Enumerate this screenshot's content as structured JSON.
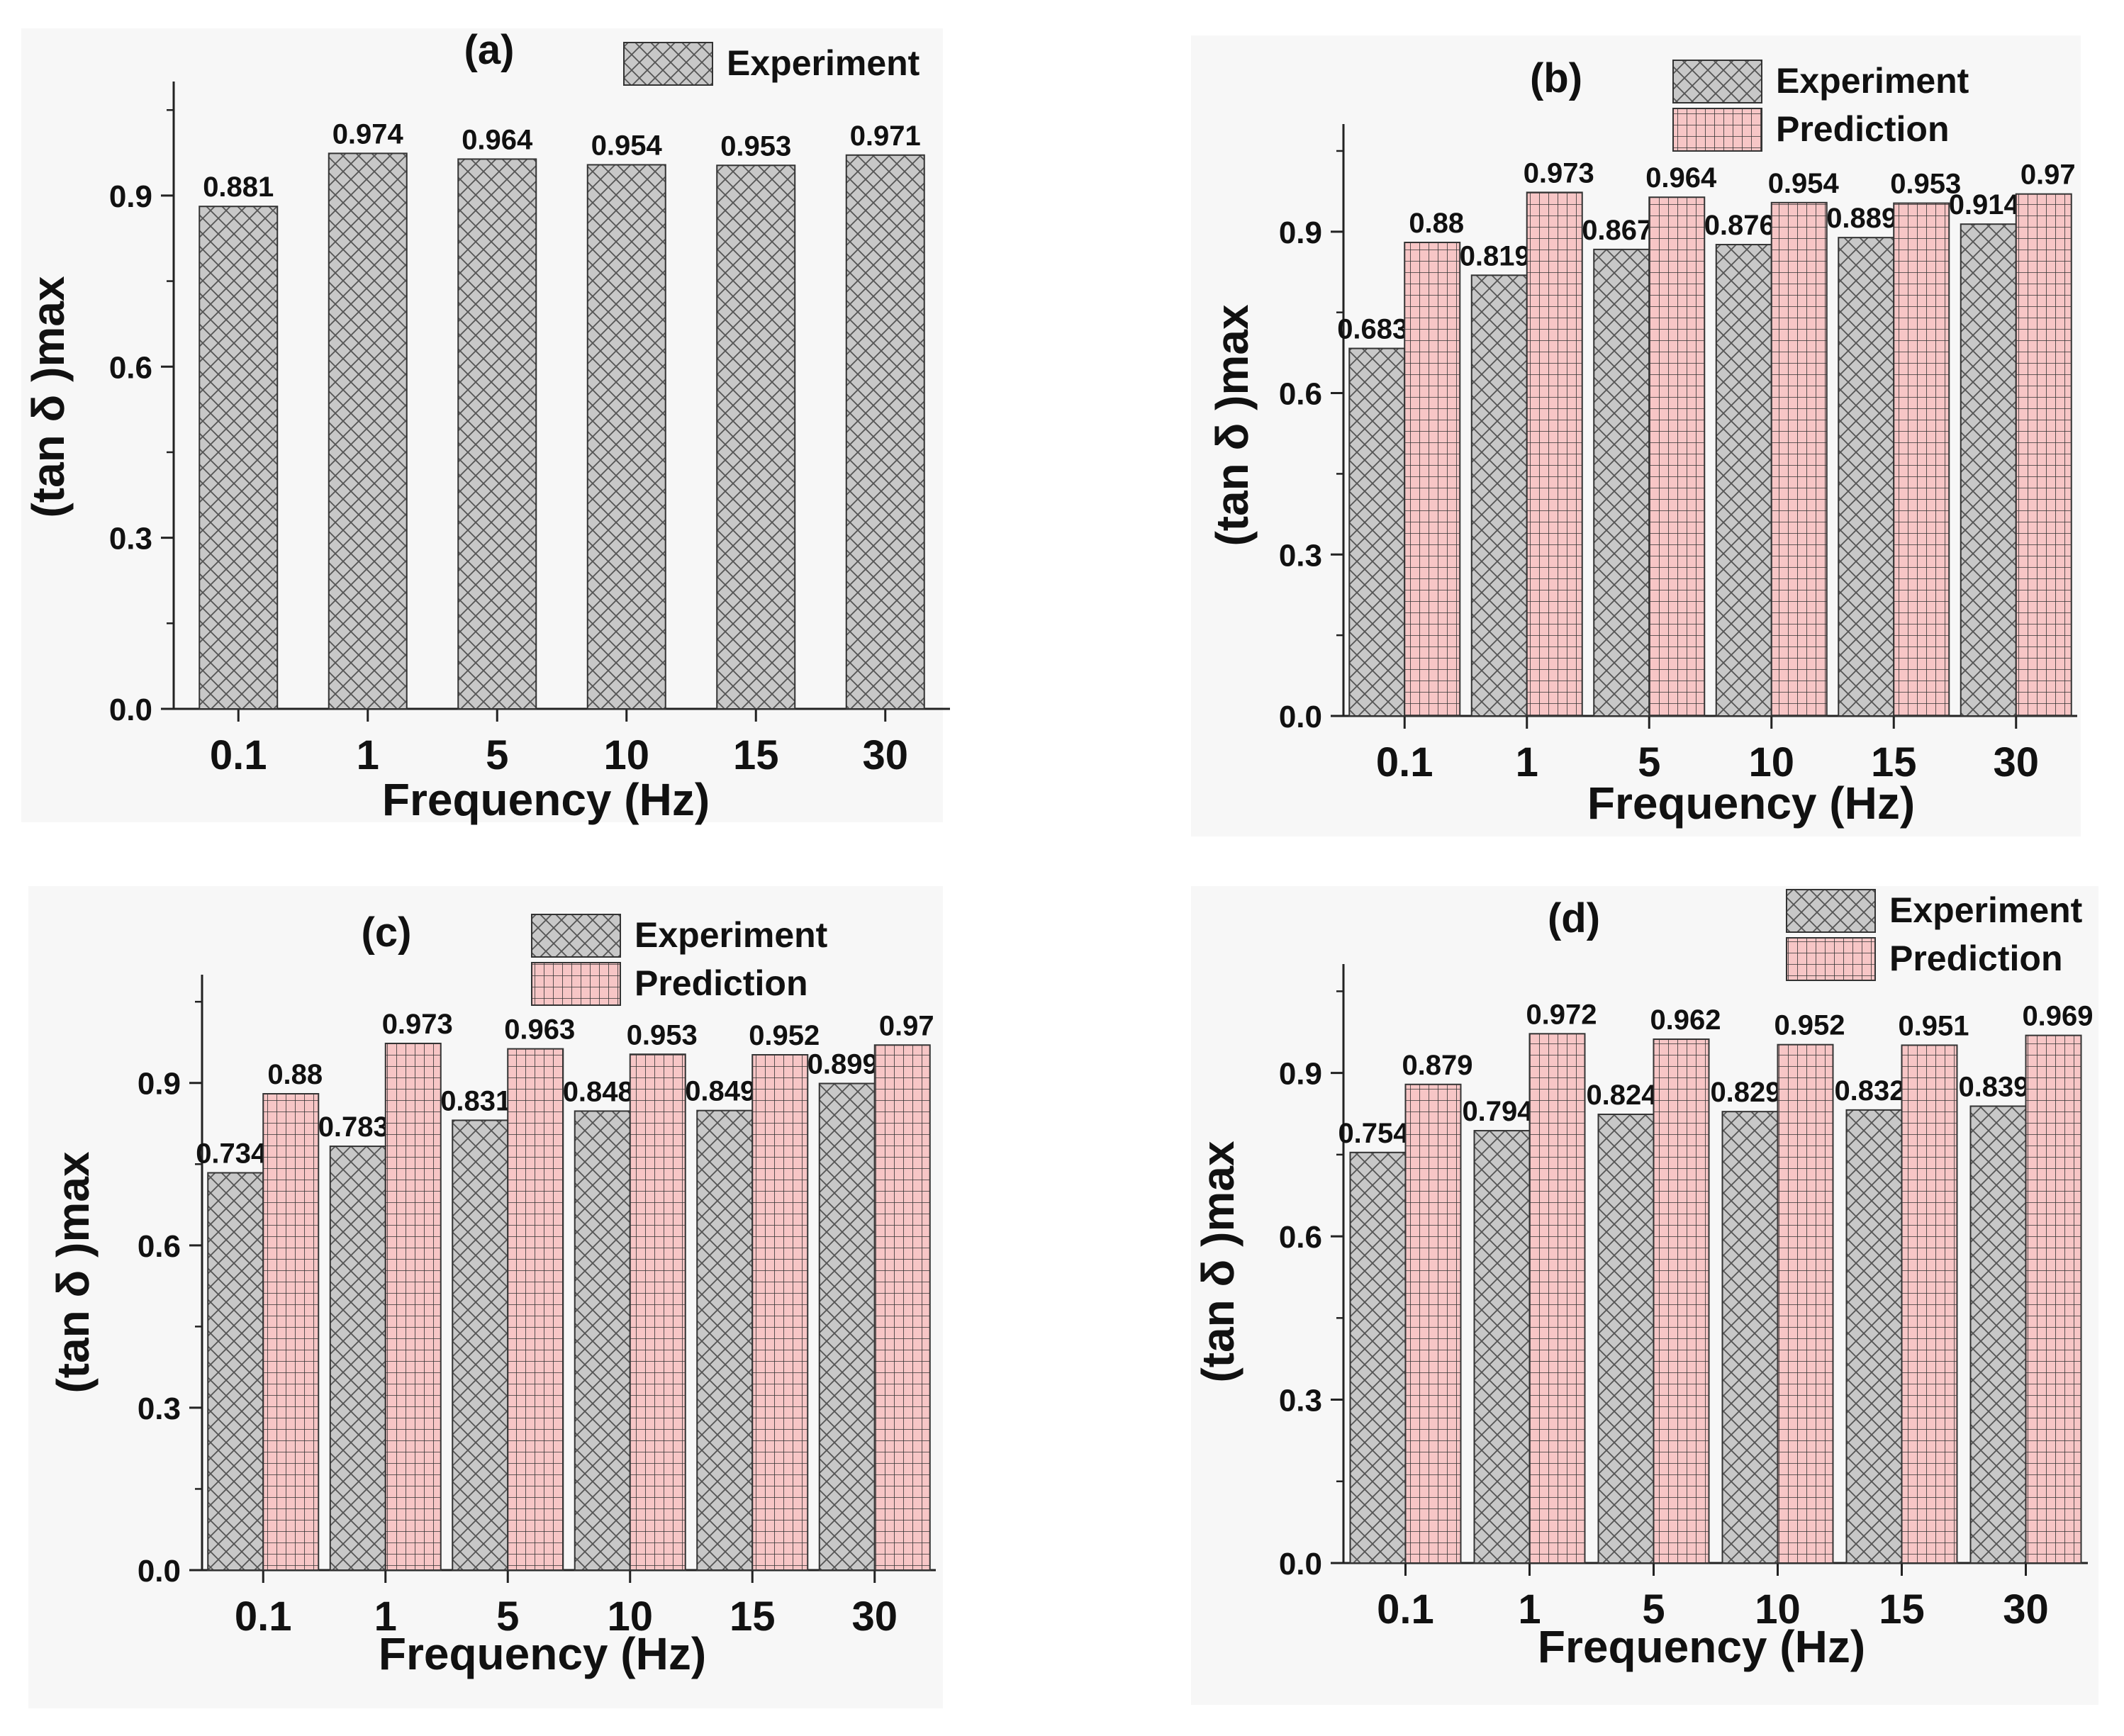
{
  "figure": {
    "panels": [
      {
        "label": "(a)",
        "legend": [
          "Experiment"
        ]
      },
      {
        "label": "(b)",
        "legend": [
          "Experiment",
          "Prediction"
        ]
      },
      {
        "label": "(c)",
        "legend": [
          "Experiment",
          "Prediction"
        ]
      },
      {
        "label": "(d)",
        "legend": [
          "Experiment",
          "Prediction"
        ]
      }
    ],
    "colors": {
      "experiment_fill": "#c8c8c8",
      "experiment_hatch": "#555555",
      "prediction_fill": "#f7c6c6",
      "prediction_hatch": "#333333",
      "panel_bg": "#f7f7f7"
    }
  },
  "chart_data": [
    {
      "type": "bar",
      "title": "(a)",
      "xlabel": "Frequency (Hz)",
      "ylabel": "(tan δ )max",
      "categories": [
        "0.1",
        "1",
        "5",
        "10",
        "15",
        "30"
      ],
      "yticks": [
        "0.0",
        "0.3",
        "0.6",
        "0.9"
      ],
      "ylim": [
        0,
        1.1
      ],
      "legend_position": "top-right",
      "series": [
        {
          "name": "Experiment",
          "values": [
            0.881,
            0.974,
            0.964,
            0.954,
            0.953,
            0.971
          ],
          "labels": [
            "0.881",
            "0.974",
            "0.964",
            "0.954",
            "0.953",
            "0.971"
          ]
        }
      ]
    },
    {
      "type": "bar",
      "title": "(b)",
      "xlabel": "Frequency (Hz)",
      "ylabel": "(tan δ )max",
      "categories": [
        "0.1",
        "1",
        "5",
        "10",
        "15",
        "30"
      ],
      "yticks": [
        "0.0",
        "0.3",
        "0.6",
        "0.9"
      ],
      "ylim": [
        0,
        1.1
      ],
      "legend_position": "top-right",
      "series": [
        {
          "name": "Experiment",
          "values": [
            0.683,
            0.819,
            0.867,
            0.876,
            0.889,
            0.914
          ],
          "labels": [
            "0.683",
            "0.819",
            "0.867",
            "0.876",
            "0.889",
            "0.914"
          ]
        },
        {
          "name": "Prediction",
          "values": [
            0.88,
            0.973,
            0.964,
            0.954,
            0.953,
            0.97
          ],
          "labels": [
            "0.88",
            "0.973",
            "0.964",
            "0.954",
            "0.953",
            "0.97"
          ]
        }
      ]
    },
    {
      "type": "bar",
      "title": "(c)",
      "xlabel": "Frequency (Hz)",
      "ylabel": "(tan δ )max",
      "categories": [
        "0.1",
        "1",
        "5",
        "10",
        "15",
        "30"
      ],
      "yticks": [
        "0.0",
        "0.3",
        "0.6",
        "0.9"
      ],
      "ylim": [
        0,
        1.1
      ],
      "legend_position": "top-right",
      "series": [
        {
          "name": "Experiment",
          "values": [
            0.734,
            0.783,
            0.831,
            0.848,
            0.849,
            0.899
          ],
          "labels": [
            "0.734",
            "0.783",
            "0.831",
            "0.848",
            "0.849",
            "0.899"
          ]
        },
        {
          "name": "Prediction",
          "values": [
            0.88,
            0.973,
            0.963,
            0.953,
            0.952,
            0.97
          ],
          "labels": [
            "0.88",
            "0.973",
            "0.963",
            "0.953",
            "0.952",
            "0.97"
          ]
        }
      ]
    },
    {
      "type": "bar",
      "title": "(d)",
      "xlabel": "Frequency (Hz)",
      "ylabel": "(tan δ )max",
      "categories": [
        "0.1",
        "1",
        "5",
        "10",
        "15",
        "30"
      ],
      "yticks": [
        "0.0",
        "0.3",
        "0.6",
        "0.9"
      ],
      "ylim": [
        0,
        1.1
      ],
      "legend_position": "top-right",
      "series": [
        {
          "name": "Experiment",
          "values": [
            0.754,
            0.794,
            0.824,
            0.829,
            0.832,
            0.839
          ],
          "labels": [
            "0.754",
            "0.794",
            "0.824",
            "0.829",
            "0.832",
            "0.839"
          ]
        },
        {
          "name": "Prediction",
          "values": [
            0.879,
            0.972,
            0.962,
            0.952,
            0.951,
            0.969
          ],
          "labels": [
            "0.879",
            "0.972",
            "0.962",
            "0.952",
            "0.951",
            "0.969"
          ]
        }
      ]
    }
  ]
}
